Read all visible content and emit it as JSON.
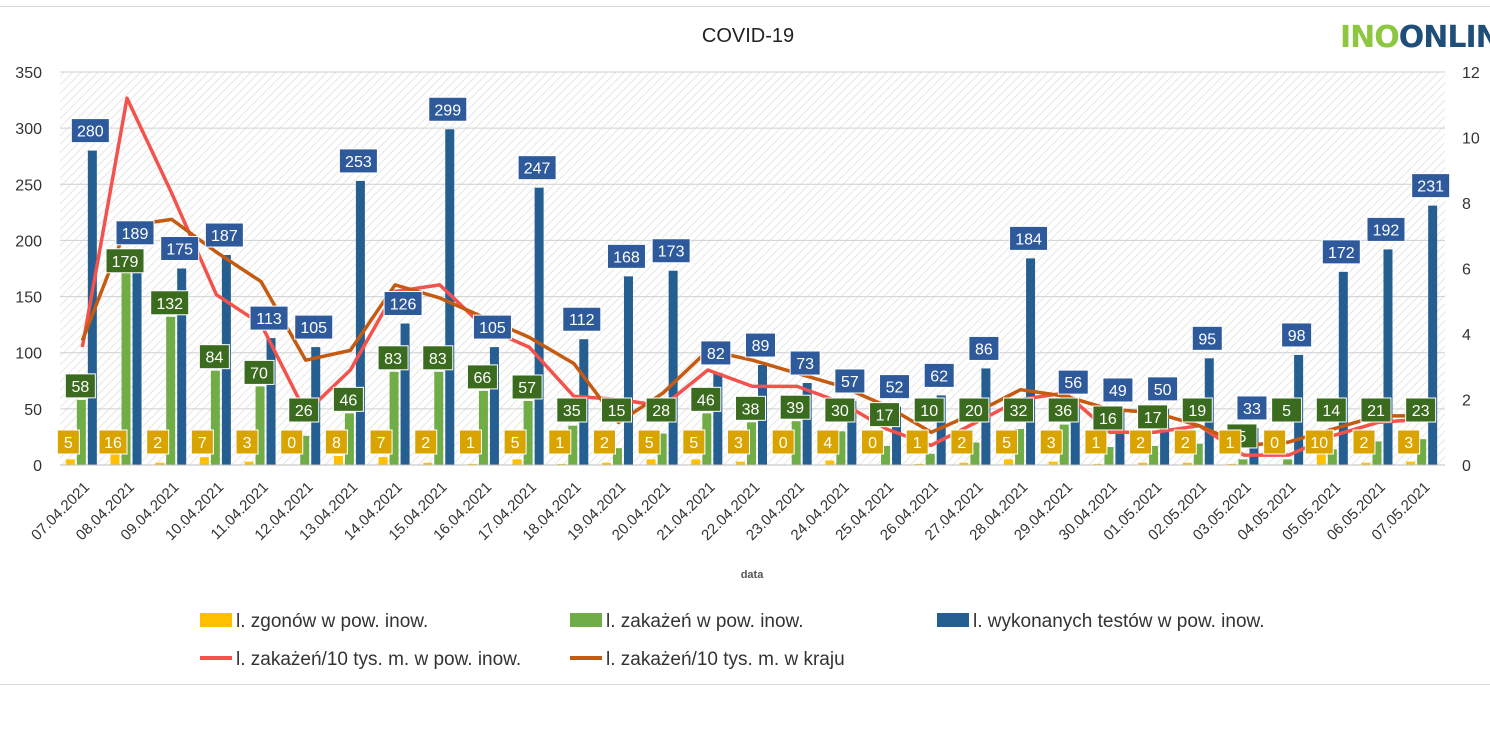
{
  "logo": {
    "part1": "INO",
    "part2": "ONLIN"
  },
  "chart_data": {
    "type": "bar",
    "title": "COVID-19",
    "xlabel": "data",
    "ylabel": "",
    "ylim": [
      0,
      350
    ],
    "y2lim": [
      0,
      12
    ],
    "yticks": [
      "0",
      "50",
      "100",
      "150",
      "200",
      "250",
      "300",
      "350"
    ],
    "y2ticks": [
      "0",
      "2",
      "4",
      "6",
      "8",
      "10",
      "12"
    ],
    "categories": [
      "07.04.2021",
      "08.04.2021",
      "09.04.2021",
      "10.04.2021",
      "11.04.2021",
      "12.04.2021",
      "13.04.2021",
      "14.04.2021",
      "15.04.2021",
      "16.04.2021",
      "17.04.2021",
      "18.04.2021",
      "19.04.2021",
      "20.04.2021",
      "21.04.2021",
      "22.04.2021",
      "23.04.2021",
      "24.04.2021",
      "25.04.2021",
      "26.04.2021",
      "27.04.2021",
      "28.04.2021",
      "29.04.2021",
      "30.04.2021",
      "01.05.2021",
      "02.05.2021",
      "03.05.2021",
      "04.05.2021",
      "05.05.2021",
      "06.05.2021",
      "07.05.2021"
    ],
    "series": [
      {
        "name": "l. zgonów w pow. inow.",
        "color": "#ffc000",
        "axis": "left",
        "kind": "bar",
        "values": [
          5,
          16,
          2,
          7,
          3,
          0,
          8,
          7,
          2,
          1,
          5,
          1,
          2,
          5,
          5,
          3,
          0,
          4,
          0,
          1,
          2,
          5,
          3,
          1,
          2,
          2,
          1,
          0,
          10,
          2,
          3
        ]
      },
      {
        "name": "l. zakażeń w pow. inow.",
        "color": "#70ad47",
        "axis": "left",
        "kind": "bar",
        "values": [
          58,
          179,
          132,
          84,
          70,
          26,
          46,
          83,
          83,
          66,
          57,
          35,
          15,
          28,
          46,
          38,
          39,
          30,
          17,
          10,
          20,
          32,
          36,
          16,
          17,
          19,
          5,
          5,
          14,
          21,
          23
        ]
      },
      {
        "name": "l. wykonanych testów w pow. inow.",
        "color": "#255e91",
        "axis": "left",
        "kind": "bar",
        "values": [
          280,
          189,
          175,
          187,
          113,
          105,
          253,
          126,
          299,
          105,
          247,
          112,
          168,
          173,
          82,
          89,
          73,
          57,
          52,
          62,
          86,
          184,
          56,
          49,
          50,
          95,
          33,
          98,
          172,
          192,
          231
        ]
      },
      {
        "name": "l. zakażeń/10 tys. m. w pow. inow.",
        "color": "#f4524d",
        "axis": "right",
        "kind": "line",
        "values": [
          3.6,
          11.2,
          8.3,
          5.2,
          4.3,
          1.6,
          2.9,
          5.3,
          5.5,
          4.2,
          3.6,
          2.1,
          2.0,
          1.8,
          2.9,
          2.4,
          2.4,
          1.9,
          1.1,
          0.6,
          1.3,
          2.0,
          2.2,
          1.0,
          1.0,
          1.2,
          0.3,
          0.3,
          0.9,
          1.3,
          1.4
        ]
      },
      {
        "name": "l. zakażeń/10 tys. m. w kraju",
        "color": "#c55a11",
        "axis": "right",
        "kind": "line",
        "values": [
          3.8,
          7.3,
          7.5,
          6.5,
          5.6,
          3.2,
          3.5,
          5.5,
          5.1,
          4.5,
          3.9,
          3.1,
          1.3,
          2.2,
          3.5,
          3.2,
          2.8,
          2.4,
          1.8,
          1.0,
          1.6,
          2.3,
          2.1,
          1.7,
          1.6,
          1.2,
          0.6,
          0.7,
          1.1,
          1.5,
          1.5
        ]
      }
    ],
    "legend_position": "bottom",
    "grid": true
  }
}
